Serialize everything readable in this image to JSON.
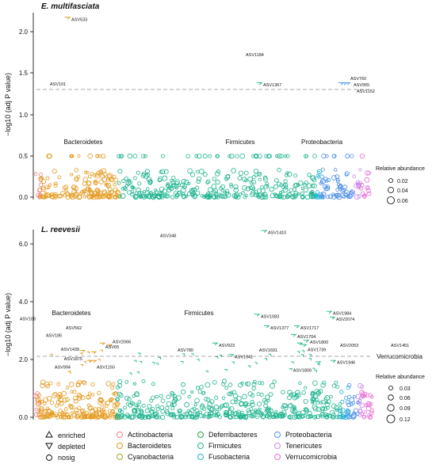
{
  "colors": {
    "Actinobacteria": "#F0807F",
    "Bacteroidetes": "#E39A1E",
    "Cyanobacteria": "#A8A822",
    "Deferribacteres": "#22A33F",
    "Firmicutes": "#1DB38E",
    "Fusobacteria": "#21B4D4",
    "Proteobacteria": "#4A8FE8",
    "Tenericutes": "#C98BE6",
    "Verrucomicrobia": "#E86FD7",
    "threshold": "#bbbbbb"
  },
  "legend": {
    "direction": [
      {
        "shape": "triangle-up",
        "label": "enriched"
      },
      {
        "shape": "triangle-down",
        "label": "depleted"
      },
      {
        "shape": "circle",
        "label": "nosig"
      }
    ],
    "phyla": [
      "Actinobacteria",
      "Bacteroidetes",
      "Cyanobacteria",
      "Deferribacteres",
      "Firmicutes",
      "Fusobacteria",
      "Proteobacteria",
      "Tenericutes",
      "Verrucomicrobia"
    ]
  },
  "chart_data": [
    {
      "type": "scatter",
      "title": "E. multifasciata",
      "ylabel": "−log10 (adj P value)",
      "ylim": [
        0,
        2.25
      ],
      "yticks": [
        "0.0",
        "0.5",
        "1.0",
        "1.5",
        "2.0"
      ],
      "threshold": 1.3,
      "phylum_labels": [
        "Bacteroidetes",
        "Firmicutes",
        "Proteobacteria"
      ],
      "size_legend": {
        "title": "Relative abundance",
        "values": [
          "0.02",
          "0.04",
          "0.06"
        ]
      },
      "labeled_points": [
        {
          "id": "ASV533",
          "y": 2.17,
          "phylum": "Bacteroidetes",
          "dir": "depleted"
        },
        {
          "id": "ASV101",
          "y": 1.38,
          "phylum": "Bacteroidetes",
          "dir": "enriched"
        },
        {
          "id": "ASV1184",
          "y": 1.74,
          "phylum": "Firmicutes",
          "dir": "enriched"
        },
        {
          "id": "ASV1367",
          "y": 1.37,
          "phylum": "Firmicutes",
          "dir": "depleted"
        },
        {
          "id": "ASV760",
          "y": 1.37,
          "phylum": "Proteobacteria",
          "dir": "depleted"
        },
        {
          "id": "ASV955",
          "y": 1.37,
          "phylum": "Proteobacteria",
          "dir": "depleted"
        },
        {
          "id": "ASV1152",
          "y": 1.37,
          "phylum": "Proteobacteria",
          "dir": "depleted"
        }
      ]
    },
    {
      "type": "scatter",
      "title": "L. reevesii",
      "ylabel": "−log10 (adj P value)",
      "ylim": [
        0,
        6.9
      ],
      "yticks": [
        "0.0",
        "2.0",
        "4.0",
        "6.0"
      ],
      "threshold": 1.3,
      "phylum_labels": [
        "Bacteroidetes",
        "Firmicutes",
        "Verrucomicrobia"
      ],
      "size_legend": {
        "title": "Relative abundance",
        "values": [
          "0.03",
          "0.06",
          "0.09",
          "0.12"
        ]
      },
      "labeled_points": [
        {
          "id": "ASV108",
          "y": 3.2,
          "phylum": "Bacteroidetes",
          "dir": "enriched"
        },
        {
          "id": "ASV185",
          "y": 2.9,
          "phylum": "Bacteroidetes",
          "dir": "enriched"
        },
        {
          "id": "ASV562",
          "y": 3.1,
          "phylum": "Bacteroidetes",
          "dir": "enriched"
        },
        {
          "id": "ASV2066",
          "y": 2.45,
          "phylum": "Bacteroidetes",
          "dir": "depleted"
        },
        {
          "id": "ASV1439",
          "y": 2.25,
          "phylum": "Bacteroidetes",
          "dir": "depleted"
        },
        {
          "id": "ASV65",
          "y": 2.5,
          "phylum": "Bacteroidetes",
          "dir": "depleted"
        },
        {
          "id": "ASV1875",
          "y": 2.2,
          "phylum": "Bacteroidetes",
          "dir": "depleted"
        },
        {
          "id": "ASV994",
          "y": 1.9,
          "phylum": "Bacteroidetes",
          "dir": "depleted"
        },
        {
          "id": "ASV1150",
          "y": 1.9,
          "phylum": "Bacteroidetes",
          "dir": "depleted"
        },
        {
          "id": "ASV348",
          "y": 6.3,
          "phylum": "Firmicutes",
          "dir": "enriched"
        },
        {
          "id": "ASV780",
          "y": 2.6,
          "phylum": "Firmicutes",
          "dir": "enriched"
        },
        {
          "id": "ASV923",
          "y": 2.5,
          "phylum": "Firmicutes",
          "dir": "depleted"
        },
        {
          "id": "ASV1041",
          "y": 2.1,
          "phylum": "Firmicutes",
          "dir": "depleted"
        },
        {
          "id": "ASV1410",
          "y": 6.4,
          "phylum": "Firmicutes",
          "dir": "depleted"
        },
        {
          "id": "ASV1083",
          "y": 3.5,
          "phylum": "Firmicutes",
          "dir": "depleted"
        },
        {
          "id": "ASV1377",
          "y": 3.1,
          "phylum": "Firmicutes",
          "dir": "depleted"
        },
        {
          "id": "ASV1717",
          "y": 3.1,
          "phylum": "Firmicutes",
          "dir": "depleted"
        },
        {
          "id": "ASV1704",
          "y": 2.8,
          "phylum": "Firmicutes",
          "dir": "depleted"
        },
        {
          "id": "ASV1691",
          "y": 2.5,
          "phylum": "Firmicutes",
          "dir": "depleted"
        },
        {
          "id": "ASV1800",
          "y": 2.6,
          "phylum": "Firmicutes",
          "dir": "depleted"
        },
        {
          "id": "ASV1739",
          "y": 2.45,
          "phylum": "Firmicutes",
          "dir": "depleted"
        },
        {
          "id": "ASV1984",
          "y": 3.6,
          "phylum": "Firmicutes",
          "dir": "depleted"
        },
        {
          "id": "ASV2074",
          "y": 3.4,
          "phylum": "Firmicutes",
          "dir": "depleted"
        },
        {
          "id": "ASV2053",
          "y": 2.5,
          "phylum": "Firmicutes",
          "dir": "enriched"
        },
        {
          "id": "ASV1809",
          "y": 1.85,
          "phylum": "Firmicutes",
          "dir": "depleted"
        },
        {
          "id": "ASV1946",
          "y": 1.9,
          "phylum": "Firmicutes",
          "dir": "depleted"
        },
        {
          "id": "ASV1451",
          "y": 2.5,
          "phylum": "Verrucomicrobia",
          "dir": "enriched"
        }
      ]
    }
  ]
}
